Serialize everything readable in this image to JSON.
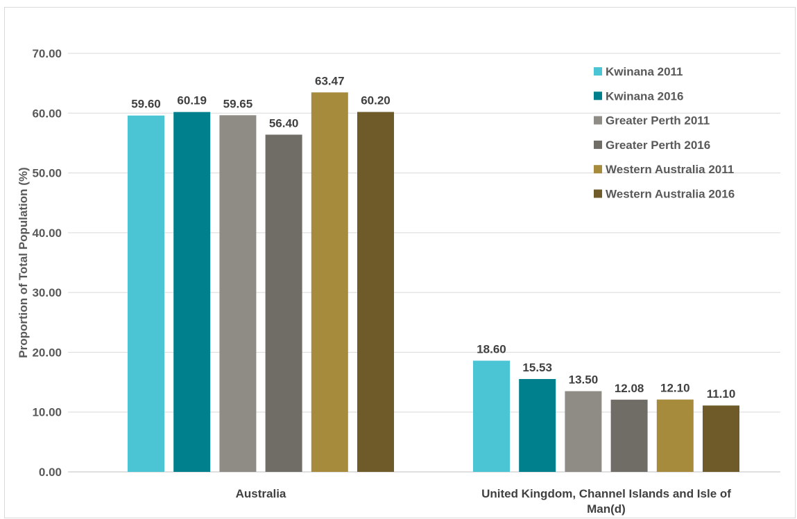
{
  "chart_data": {
    "type": "bar",
    "title": "",
    "xlabel": "",
    "ylabel": "Proportion of Total Population (%)",
    "ylim": [
      0,
      70
    ],
    "yticks": [
      "0.00",
      "10.00",
      "20.00",
      "30.00",
      "40.00",
      "50.00",
      "60.00",
      "70.00"
    ],
    "grid": true,
    "legend_position": "top-right",
    "categories": [
      [
        "Australia"
      ],
      [
        "United Kingdom, Channel Islands and Isle of",
        "Man(d)"
      ]
    ],
    "series": [
      {
        "name": "Kwinana 2011",
        "color": "#4bc4d3",
        "values": [
          59.6,
          18.6
        ],
        "labels": [
          "59.60",
          "18.60"
        ]
      },
      {
        "name": "Kwinana 2016",
        "color": "#00808c",
        "values": [
          60.19,
          15.53
        ],
        "labels": [
          "60.19",
          "15.53"
        ]
      },
      {
        "name": "Greater Perth 2011",
        "color": "#8f8c85",
        "values": [
          59.65,
          13.5
        ],
        "labels": [
          "59.65",
          "13.50"
        ]
      },
      {
        "name": "Greater Perth 2016",
        "color": "#6f6d66",
        "values": [
          56.4,
          12.08
        ],
        "labels": [
          "56.40",
          "12.08"
        ]
      },
      {
        "name": "Western Australia 2011",
        "color": "#a68b3c",
        "values": [
          63.47,
          12.1
        ],
        "labels": [
          "63.47",
          "12.10"
        ]
      },
      {
        "name": "Western Australia 2016",
        "color": "#6f5b2a",
        "values": [
          60.2,
          11.1
        ],
        "labels": [
          "60.20",
          "11.10"
        ]
      }
    ]
  }
}
